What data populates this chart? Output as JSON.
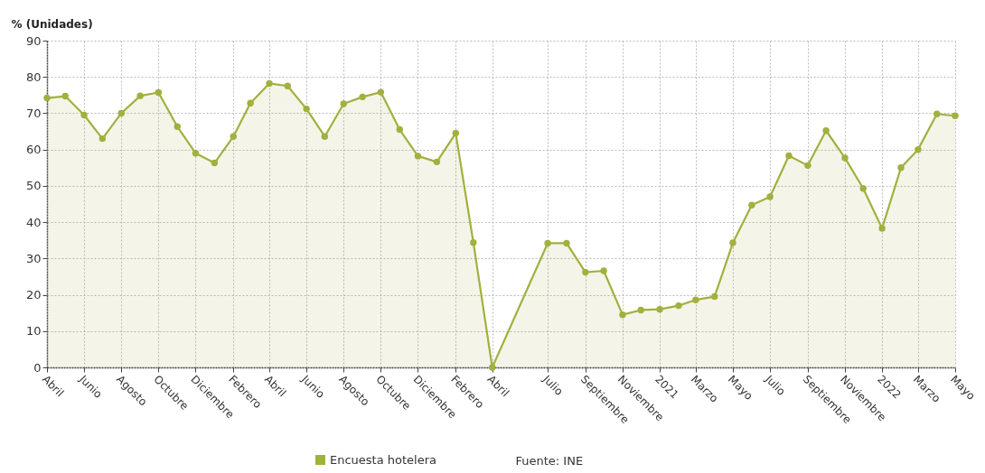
{
  "chart_data": {
    "type": "area",
    "ylabel": "% (Unidades)",
    "x": [
      "2018-04",
      "2018-05",
      "2018-06",
      "2018-07",
      "2018-08",
      "2018-09",
      "2018-10",
      "2018-11",
      "2018-12",
      "2019-01",
      "2019-02",
      "2019-03",
      "2019-04",
      "2019-05",
      "2019-06",
      "2019-07",
      "2019-08",
      "2019-09",
      "2019-10",
      "2019-11",
      "2019-12",
      "2020-01",
      "2020-02",
      "2020-03",
      "2020-04",
      "2020-07",
      "2020-08",
      "2020-09",
      "2020-10",
      "2020-11",
      "2020-12",
      "2021-01",
      "2021-02",
      "2021-03",
      "2021-04",
      "2021-05",
      "2021-06",
      "2021-07",
      "2021-08",
      "2021-09",
      "2021-10",
      "2021-11",
      "2021-12",
      "2022-01",
      "2022-02",
      "2022-03",
      "2022-04",
      "2022-05"
    ],
    "series": [
      {
        "name": "Encuesta hotelera",
        "color": "#a2b03f",
        "values": [
          74.2,
          74.7,
          69.5,
          63,
          70,
          74.8,
          75.7,
          66.3,
          59,
          56.3,
          63.6,
          72.8,
          78.2,
          77.5,
          71.2,
          63.6,
          72.6,
          74.5,
          75.8,
          65.5,
          58.2,
          56.6,
          64.5,
          34.4,
          0,
          34.2,
          34.2,
          26.2,
          26.6,
          14.5,
          15.8,
          16,
          17,
          18.6,
          19.5,
          34.3,
          44.7,
          47,
          58.3,
          55.6,
          65.2,
          57.7,
          49.3,
          38.3,
          55,
          60,
          69.8,
          69.3
        ]
      }
    ],
    "xlim": [
      "2018-04",
      "2022-05"
    ],
    "xticks": [
      {
        "value": "2018-04",
        "label": "Abril"
      },
      {
        "value": "2018-06",
        "label": "Junio"
      },
      {
        "value": "2018-08",
        "label": "Agosto"
      },
      {
        "value": "2018-10",
        "label": "Octubre"
      },
      {
        "value": "2018-12",
        "label": "Diciembre"
      },
      {
        "value": "2019-02",
        "label": "Febrero"
      },
      {
        "value": "2019-04",
        "label": "Abril"
      },
      {
        "value": "2019-06",
        "label": "Junio"
      },
      {
        "value": "2019-08",
        "label": "Agosto"
      },
      {
        "value": "2019-10",
        "label": "Octubre"
      },
      {
        "value": "2019-12",
        "label": "Diciembre"
      },
      {
        "value": "2020-02",
        "label": "Febrero"
      },
      {
        "value": "2020-04",
        "label": "Abril"
      },
      {
        "value": "2020-07",
        "label": "Julio"
      },
      {
        "value": "2020-09",
        "label": "Septiembre"
      },
      {
        "value": "2020-11",
        "label": "Noviembre"
      },
      {
        "value": "2021-01",
        "label": "2021"
      },
      {
        "value": "2021-03",
        "label": "Marzo"
      },
      {
        "value": "2021-05",
        "label": "Mayo"
      },
      {
        "value": "2021-07",
        "label": "Julio"
      },
      {
        "value": "2021-09",
        "label": "Septiembre"
      },
      {
        "value": "2021-11",
        "label": "Noviembre"
      },
      {
        "value": "2022-01",
        "label": "2022"
      },
      {
        "value": "2022-03",
        "label": "Marzo"
      },
      {
        "value": "2022-05",
        "label": "Mayo"
      }
    ],
    "ylim": [
      0,
      90
    ],
    "yticks": [
      0,
      10,
      20,
      30,
      40,
      50,
      60,
      70,
      80,
      90
    ],
    "grid": true,
    "legend": "bottom",
    "marker": "circle",
    "line_style": "solid",
    "annotations": [
      "Fuente: INE"
    ]
  }
}
